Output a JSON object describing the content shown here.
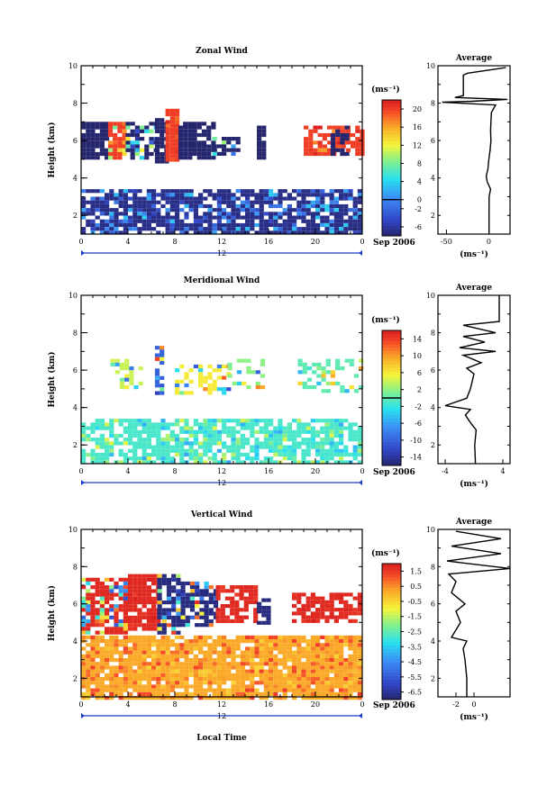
{
  "chart_data": [
    {
      "type": "heatmap",
      "title": "Zonal Wind",
      "ylabel": "Height (km)",
      "xlabel": "",
      "xlim": [
        0,
        24
      ],
      "ylim": [
        1,
        10
      ],
      "x_ticks": [
        "0",
        "4",
        "8",
        "12",
        "16",
        "20",
        "0"
      ],
      "y_ticks": [
        "2",
        "4",
        "6",
        "8",
        "10"
      ],
      "date_label": "12",
      "month_label": "Sep 2006",
      "colorbar": {
        "unit": "(ms⁻¹)",
        "ticks": [
          "-6",
          "-2",
          "0",
          "4",
          "8",
          "12",
          "16",
          "20"
        ],
        "range": [
          -8,
          22
        ],
        "zero_line": 0
      },
      "fields": [
        {
          "x0": 0.0,
          "x1": 24.0,
          "y0": 1.0,
          "y1": 3.4,
          "value": -7.0,
          "density": 0.8,
          "mix": [
            -8,
            4
          ]
        },
        {
          "x0": 0.0,
          "x1": 2.3,
          "y0": 5.0,
          "y1": 7.0,
          "value": -8.0,
          "density": 0.9,
          "mix": [
            -8,
            -8
          ]
        },
        {
          "x0": 2.3,
          "x1": 3.8,
          "y0": 5.0,
          "y1": 7.0,
          "value": 20.0,
          "density": 0.85,
          "mix": [
            8,
            20
          ]
        },
        {
          "x0": 3.8,
          "x1": 6.3,
          "y0": 5.0,
          "y1": 7.0,
          "value": -8.0,
          "density": 0.7,
          "mix": [
            -8,
            14
          ]
        },
        {
          "x0": 6.3,
          "x1": 7.2,
          "y0": 4.9,
          "y1": 7.2,
          "value": -8.0,
          "density": 0.9,
          "mix": [
            -8,
            -8
          ]
        },
        {
          "x0": 7.2,
          "x1": 8.1,
          "y0": 4.9,
          "y1": 7.7,
          "value": 20.0,
          "density": 0.95,
          "mix": [
            18,
            22
          ]
        },
        {
          "x0": 8.3,
          "x1": 11.2,
          "y0": 5.0,
          "y1": 7.0,
          "value": -8.0,
          "density": 0.9,
          "mix": [
            -8,
            -8
          ]
        },
        {
          "x0": 11.2,
          "x1": 13.3,
          "y0": 5.2,
          "y1": 6.2,
          "value": -8.0,
          "density": 0.55,
          "mix": [
            -8,
            10
          ]
        },
        {
          "x0": 15.0,
          "x1": 15.7,
          "y0": 5.0,
          "y1": 6.8,
          "value": -8.0,
          "density": 0.8,
          "mix": [
            -8,
            -8
          ]
        },
        {
          "x0": 19.0,
          "x1": 24.0,
          "y0": 5.2,
          "y1": 6.8,
          "value": 20.0,
          "density": 0.75,
          "mix": [
            16,
            22
          ]
        },
        {
          "x0": 21.3,
          "x1": 22.6,
          "y0": 5.2,
          "y1": 6.8,
          "value": -8.0,
          "density": 0.6,
          "mix": [
            -8,
            -8
          ]
        }
      ],
      "average": {
        "title": "Average",
        "xlabel": "(ms⁻¹)",
        "xlim": [
          -60,
          25
        ],
        "x_ticks": [
          "-50",
          "0"
        ],
        "y_ticks": [
          "2",
          "4",
          "6",
          "8",
          "10"
        ],
        "profile": [
          [
            0.2,
            1.0
          ],
          [
            0.2,
            2.0
          ],
          [
            0.3,
            3.0
          ],
          [
            2,
            3.4
          ],
          [
            -2,
            3.8
          ],
          [
            -3,
            4.1
          ],
          [
            -1,
            4.5
          ],
          [
            0,
            5.0
          ],
          [
            1.5,
            5.5
          ],
          [
            2.5,
            6.0
          ],
          [
            2,
            6.5
          ],
          [
            2.5,
            7.0
          ],
          [
            3,
            7.5
          ],
          [
            8,
            7.9
          ],
          [
            -55,
            8.05
          ],
          [
            -20,
            8.1
          ],
          [
            22,
            8.2
          ],
          [
            -40,
            8.3
          ],
          [
            -30,
            8.4
          ],
          [
            -30,
            9.5
          ],
          [
            -25,
            9.6
          ],
          [
            20,
            9.9
          ]
        ]
      }
    },
    {
      "type": "heatmap",
      "title": "Meridional Wind",
      "ylabel": "Height (km)",
      "xlabel": "",
      "xlim": [
        0,
        24
      ],
      "ylim": [
        1,
        10
      ],
      "x_ticks": [
        "0",
        "4",
        "8",
        "12",
        "16",
        "20",
        "0"
      ],
      "y_ticks": [
        "2",
        "4",
        "6",
        "8",
        "10"
      ],
      "date_label": "12",
      "month_label": "Sep 2006",
      "colorbar": {
        "unit": "(ms⁻¹)",
        "ticks": [
          "-14",
          "-10",
          "-6",
          "-2",
          "2",
          "6",
          "10",
          "14"
        ],
        "range": [
          -16,
          16
        ],
        "zero_line": 0
      },
      "fields": [
        {
          "x0": 0.0,
          "x1": 24.0,
          "y0": 1.0,
          "y1": 3.4,
          "value": -1.0,
          "density": 0.75,
          "mix": [
            -6,
            5
          ]
        },
        {
          "x0": 2.5,
          "x1": 5.0,
          "y0": 5.0,
          "y1": 6.6,
          "value": 4.0,
          "density": 0.5,
          "mix": [
            -14,
            14
          ]
        },
        {
          "x0": 6.3,
          "x1": 7.0,
          "y0": 4.8,
          "y1": 7.3,
          "value": -10.0,
          "density": 0.55,
          "mix": [
            -14,
            14
          ]
        },
        {
          "x0": 8.0,
          "x1": 12.5,
          "y0": 4.8,
          "y1": 6.3,
          "value": 6.0,
          "density": 0.45,
          "mix": [
            -14,
            14
          ]
        },
        {
          "x0": 12.5,
          "x1": 15.5,
          "y0": 5.0,
          "y1": 6.6,
          "value": 2.0,
          "density": 0.3,
          "mix": [
            -10,
            12
          ]
        },
        {
          "x0": 18.5,
          "x1": 24.0,
          "y0": 4.8,
          "y1": 6.6,
          "value": 0.0,
          "density": 0.4,
          "mix": [
            -6,
            10
          ]
        }
      ],
      "average": {
        "title": "Average",
        "xlabel": "(ms⁻¹)",
        "xlim": [
          -5,
          5
        ],
        "x_ticks": [
          "-4",
          "4"
        ],
        "y_ticks": [
          "2",
          "4",
          "6",
          "8",
          "10"
        ],
        "profile": [
          [
            0.2,
            1.0
          ],
          [
            0.1,
            2.0
          ],
          [
            0.3,
            2.8
          ],
          [
            -0.5,
            3.2
          ],
          [
            -1.2,
            3.6
          ],
          [
            -0.5,
            3.9
          ],
          [
            -4,
            4.1
          ],
          [
            -1,
            4.5
          ],
          [
            -0.5,
            5.0
          ],
          [
            0,
            5.8
          ],
          [
            -1,
            6.1
          ],
          [
            1,
            6.4
          ],
          [
            -1.5,
            6.8
          ],
          [
            3,
            7.0
          ],
          [
            -2,
            7.2
          ],
          [
            1.5,
            7.5
          ],
          [
            -1.5,
            7.8
          ],
          [
            3,
            8.0
          ],
          [
            -1.5,
            8.4
          ],
          [
            3.5,
            8.6
          ],
          [
            3.5,
            10.0
          ]
        ]
      }
    },
    {
      "type": "heatmap",
      "title": "Vertical Wind",
      "ylabel": "Height (km)",
      "xlabel": "Local Time",
      "xlim": [
        0,
        24
      ],
      "ylim": [
        1,
        10
      ],
      "x_ticks": [
        "0",
        "4",
        "8",
        "12",
        "16",
        "20",
        "0"
      ],
      "y_ticks": [
        "2",
        "4",
        "6",
        "8",
        "10"
      ],
      "date_label": "12",
      "month_label": "Sep 2006",
      "colorbar": {
        "unit": "(ms⁻¹)",
        "ticks": [
          "-6.5",
          "-5.5",
          "-4.5",
          "-3.5",
          "-2.5",
          "-1.5",
          "-0.5",
          "0.5",
          "1.5"
        ],
        "range": [
          -7,
          2
        ],
        "zero_line": null
      },
      "fields": [
        {
          "x0": 0.0,
          "x1": 24.0,
          "y0": 1.0,
          "y1": 4.3,
          "value": 0.2,
          "density": 0.92,
          "mix": [
            -0.5,
            1.5
          ]
        },
        {
          "x0": 0.0,
          "x1": 4.0,
          "y0": 4.5,
          "y1": 7.4,
          "value": 1.8,
          "density": 0.8,
          "mix": [
            -6.5,
            2
          ]
        },
        {
          "x0": 4.0,
          "x1": 6.5,
          "y0": 4.6,
          "y1": 7.6,
          "value": 1.8,
          "density": 0.85,
          "mix": [
            1.5,
            2
          ]
        },
        {
          "x0": 6.5,
          "x1": 8.5,
          "y0": 4.5,
          "y1": 7.6,
          "value": -6.8,
          "density": 0.85,
          "mix": [
            -6.8,
            2
          ]
        },
        {
          "x0": 8.5,
          "x1": 11.5,
          "y0": 4.8,
          "y1": 7.2,
          "value": -6.8,
          "density": 0.8,
          "mix": [
            -6.8,
            2
          ]
        },
        {
          "x0": 11.5,
          "x1": 15.0,
          "y0": 5.0,
          "y1": 7.0,
          "value": 1.8,
          "density": 0.75,
          "mix": [
            1.5,
            2
          ]
        },
        {
          "x0": 15.0,
          "x1": 16.0,
          "y0": 5.0,
          "y1": 6.3,
          "value": -6.8,
          "density": 0.7,
          "mix": [
            -6.8,
            -6.8
          ]
        },
        {
          "x0": 18.0,
          "x1": 24.0,
          "y0": 5.0,
          "y1": 6.6,
          "value": 1.8,
          "density": 0.7,
          "mix": [
            1.5,
            2
          ]
        }
      ],
      "average": {
        "title": "Average",
        "xlabel": "(ms⁻¹)",
        "xlim": [
          -4,
          4
        ],
        "x_ticks": [
          "-2",
          "0"
        ],
        "y_ticks": [
          "2",
          "4",
          "6",
          "8",
          "10"
        ],
        "profile": [
          [
            -0.8,
            1.0
          ],
          [
            -0.8,
            2.0
          ],
          [
            -1.0,
            3.0
          ],
          [
            -1.2,
            3.6
          ],
          [
            -0.8,
            4.0
          ],
          [
            -2.5,
            4.2
          ],
          [
            -2.0,
            4.6
          ],
          [
            -1.5,
            5.0
          ],
          [
            -2.0,
            5.6
          ],
          [
            -1.0,
            6.0
          ],
          [
            -2.5,
            6.6
          ],
          [
            -2.0,
            7.2
          ],
          [
            -2.8,
            7.6
          ],
          [
            4.0,
            7.9
          ],
          [
            -3.0,
            8.3
          ],
          [
            3.0,
            8.7
          ],
          [
            -2.5,
            9.1
          ],
          [
            3.0,
            9.5
          ],
          [
            -2.0,
            9.9
          ]
        ]
      }
    }
  ]
}
